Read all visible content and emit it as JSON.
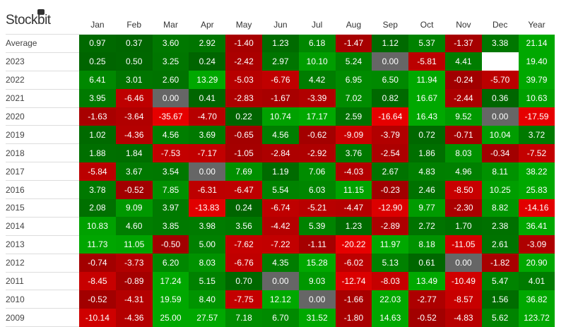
{
  "brand": "Stockbit",
  "chart_data": {
    "type": "heatmap",
    "columns": [
      "Jan",
      "Feb",
      "Mar",
      "Apr",
      "May",
      "Jun",
      "Jul",
      "Aug",
      "Sep",
      "Oct",
      "Nov",
      "Dec",
      "Year"
    ],
    "rows": [
      {
        "label": "Average",
        "values": [
          0.97,
          0.37,
          3.6,
          2.92,
          -1.4,
          1.23,
          6.18,
          -1.47,
          1.12,
          5.37,
          -1.37,
          3.38,
          21.14
        ]
      },
      {
        "label": "2023",
        "values": [
          0.25,
          0.5,
          3.25,
          0.24,
          -2.42,
          2.97,
          10.1,
          5.24,
          0.0,
          -5.81,
          4.41,
          null,
          19.4
        ]
      },
      {
        "label": "2022",
        "values": [
          6.41,
          3.01,
          2.6,
          13.29,
          -5.03,
          -6.76,
          4.42,
          6.95,
          6.5,
          11.94,
          -0.24,
          -5.7,
          39.79
        ]
      },
      {
        "label": "2021",
        "values": [
          3.95,
          -6.46,
          0.0,
          0.41,
          -2.83,
          -1.67,
          -3.39,
          7.02,
          0.82,
          16.67,
          -2.44,
          0.36,
          10.63
        ]
      },
      {
        "label": "2020",
        "values": [
          -1.63,
          -3.64,
          -35.67,
          -4.7,
          0.22,
          10.74,
          17.17,
          2.59,
          -16.64,
          16.43,
          9.52,
          0.0,
          -17.59
        ]
      },
      {
        "label": "2019",
        "values": [
          1.02,
          -4.36,
          4.56,
          3.69,
          -0.65,
          4.56,
          -0.62,
          -9.09,
          -3.79,
          0.72,
          -0.71,
          10.04,
          3.72
        ]
      },
      {
        "label": "2018",
        "values": [
          1.88,
          1.84,
          -7.53,
          -7.17,
          -1.05,
          -2.84,
          -2.92,
          3.76,
          -2.54,
          1.86,
          8.03,
          -0.34,
          -7.52
        ]
      },
      {
        "label": "2017",
        "values": [
          -5.84,
          3.67,
          3.54,
          0.0,
          7.69,
          1.19,
          7.06,
          -4.03,
          2.67,
          4.83,
          4.96,
          8.11,
          38.22
        ]
      },
      {
        "label": "2016",
        "values": [
          3.78,
          -0.52,
          7.85,
          -6.31,
          -6.47,
          5.54,
          6.03,
          11.15,
          -0.23,
          2.46,
          -8.5,
          10.25,
          25.83
        ]
      },
      {
        "label": "2015",
        "values": [
          2.08,
          9.09,
          3.97,
          -13.83,
          0.24,
          -6.74,
          -5.21,
          -4.47,
          -12.9,
          9.77,
          -2.3,
          8.82,
          -14.16
        ]
      },
      {
        "label": "2014",
        "values": [
          10.83,
          4.6,
          3.85,
          3.98,
          3.56,
          -4.42,
          5.39,
          1.23,
          -2.89,
          2.72,
          1.7,
          2.38,
          36.41
        ]
      },
      {
        "label": "2013",
        "values": [
          11.73,
          11.05,
          -0.5,
          5.0,
          -7.62,
          -7.22,
          -1.11,
          -20.22,
          11.97,
          8.18,
          -11.05,
          2.61,
          -3.09
        ]
      },
      {
        "label": "2012",
        "values": [
          -0.74,
          -3.73,
          6.2,
          8.03,
          -6.76,
          4.35,
          15.28,
          -6.02,
          5.13,
          0.61,
          0.0,
          -1.82,
          20.9
        ]
      },
      {
        "label": "2011",
        "values": [
          -8.45,
          -0.89,
          17.24,
          5.15,
          0.7,
          0.0,
          9.03,
          -12.74,
          -8.03,
          13.49,
          -10.49,
          5.47,
          4.01
        ]
      },
      {
        "label": "2010",
        "values": [
          -0.52,
          -4.31,
          19.59,
          8.4,
          -7.75,
          12.12,
          0.0,
          -1.66,
          22.03,
          -2.77,
          -8.57,
          1.56,
          36.82
        ]
      },
      {
        "label": "2009",
        "values": [
          -10.14,
          -4.36,
          25.0,
          27.57,
          7.18,
          6.7,
          31.52,
          -1.8,
          14.63,
          -0.52,
          -4.83,
          5.62,
          123.72
        ]
      }
    ],
    "colors": {
      "positive": "#00a800",
      "positive_low": "#006400",
      "negative": "#e60000",
      "negative_low": "#a00000",
      "zero": "#666666",
      "empty": "#ffffff"
    }
  }
}
